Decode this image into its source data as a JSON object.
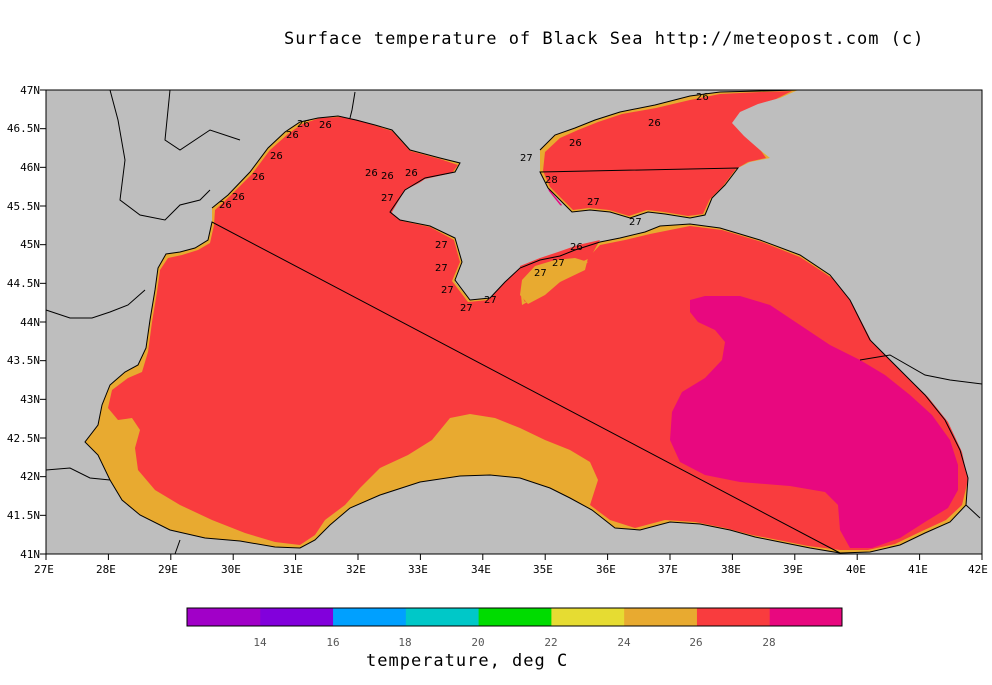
{
  "title": "Surface temperature of Black Sea  http://meteopost.com (c)",
  "colors": {
    "background": "#ffffff",
    "land": "#bebebe",
    "c24_26": "#e8aa30",
    "c26_28": "#f93c3e",
    "c28_30": "#e8087f"
  },
  "map": {
    "lon_ticks": [
      "27E",
      "28E",
      "29E",
      "30E",
      "31E",
      "32E",
      "33E",
      "34E",
      "35E",
      "36E",
      "37E",
      "38E",
      "39E",
      "40E",
      "41E",
      "42E"
    ],
    "lat_ticks": [
      "47N",
      "46.5N",
      "46N",
      "45.5N",
      "45N",
      "44.5N",
      "44N",
      "43.5N",
      "43N",
      "42.5N",
      "42N",
      "41.5N",
      "41N"
    ],
    "contour_labels": [
      "26",
      "26",
      "26",
      "26",
      "26",
      "26",
      "26",
      "26",
      "26",
      "26",
      "27",
      "27",
      "27",
      "27",
      "27",
      "27",
      "27",
      "27",
      "27",
      "28",
      "26",
      "26",
      "26",
      "26",
      "27",
      "27"
    ]
  },
  "colorbar": {
    "title": "temperature, deg C",
    "tick_labels": [
      "14",
      "16",
      "18",
      "20",
      "22",
      "24",
      "26",
      "28"
    ],
    "colors": [
      "#a100c8",
      "#8200dc",
      "#00a0ff",
      "#00c8c8",
      "#00dc00",
      "#e6dc32",
      "#e8aa30",
      "#f93c3e",
      "#e8087f"
    ]
  }
}
